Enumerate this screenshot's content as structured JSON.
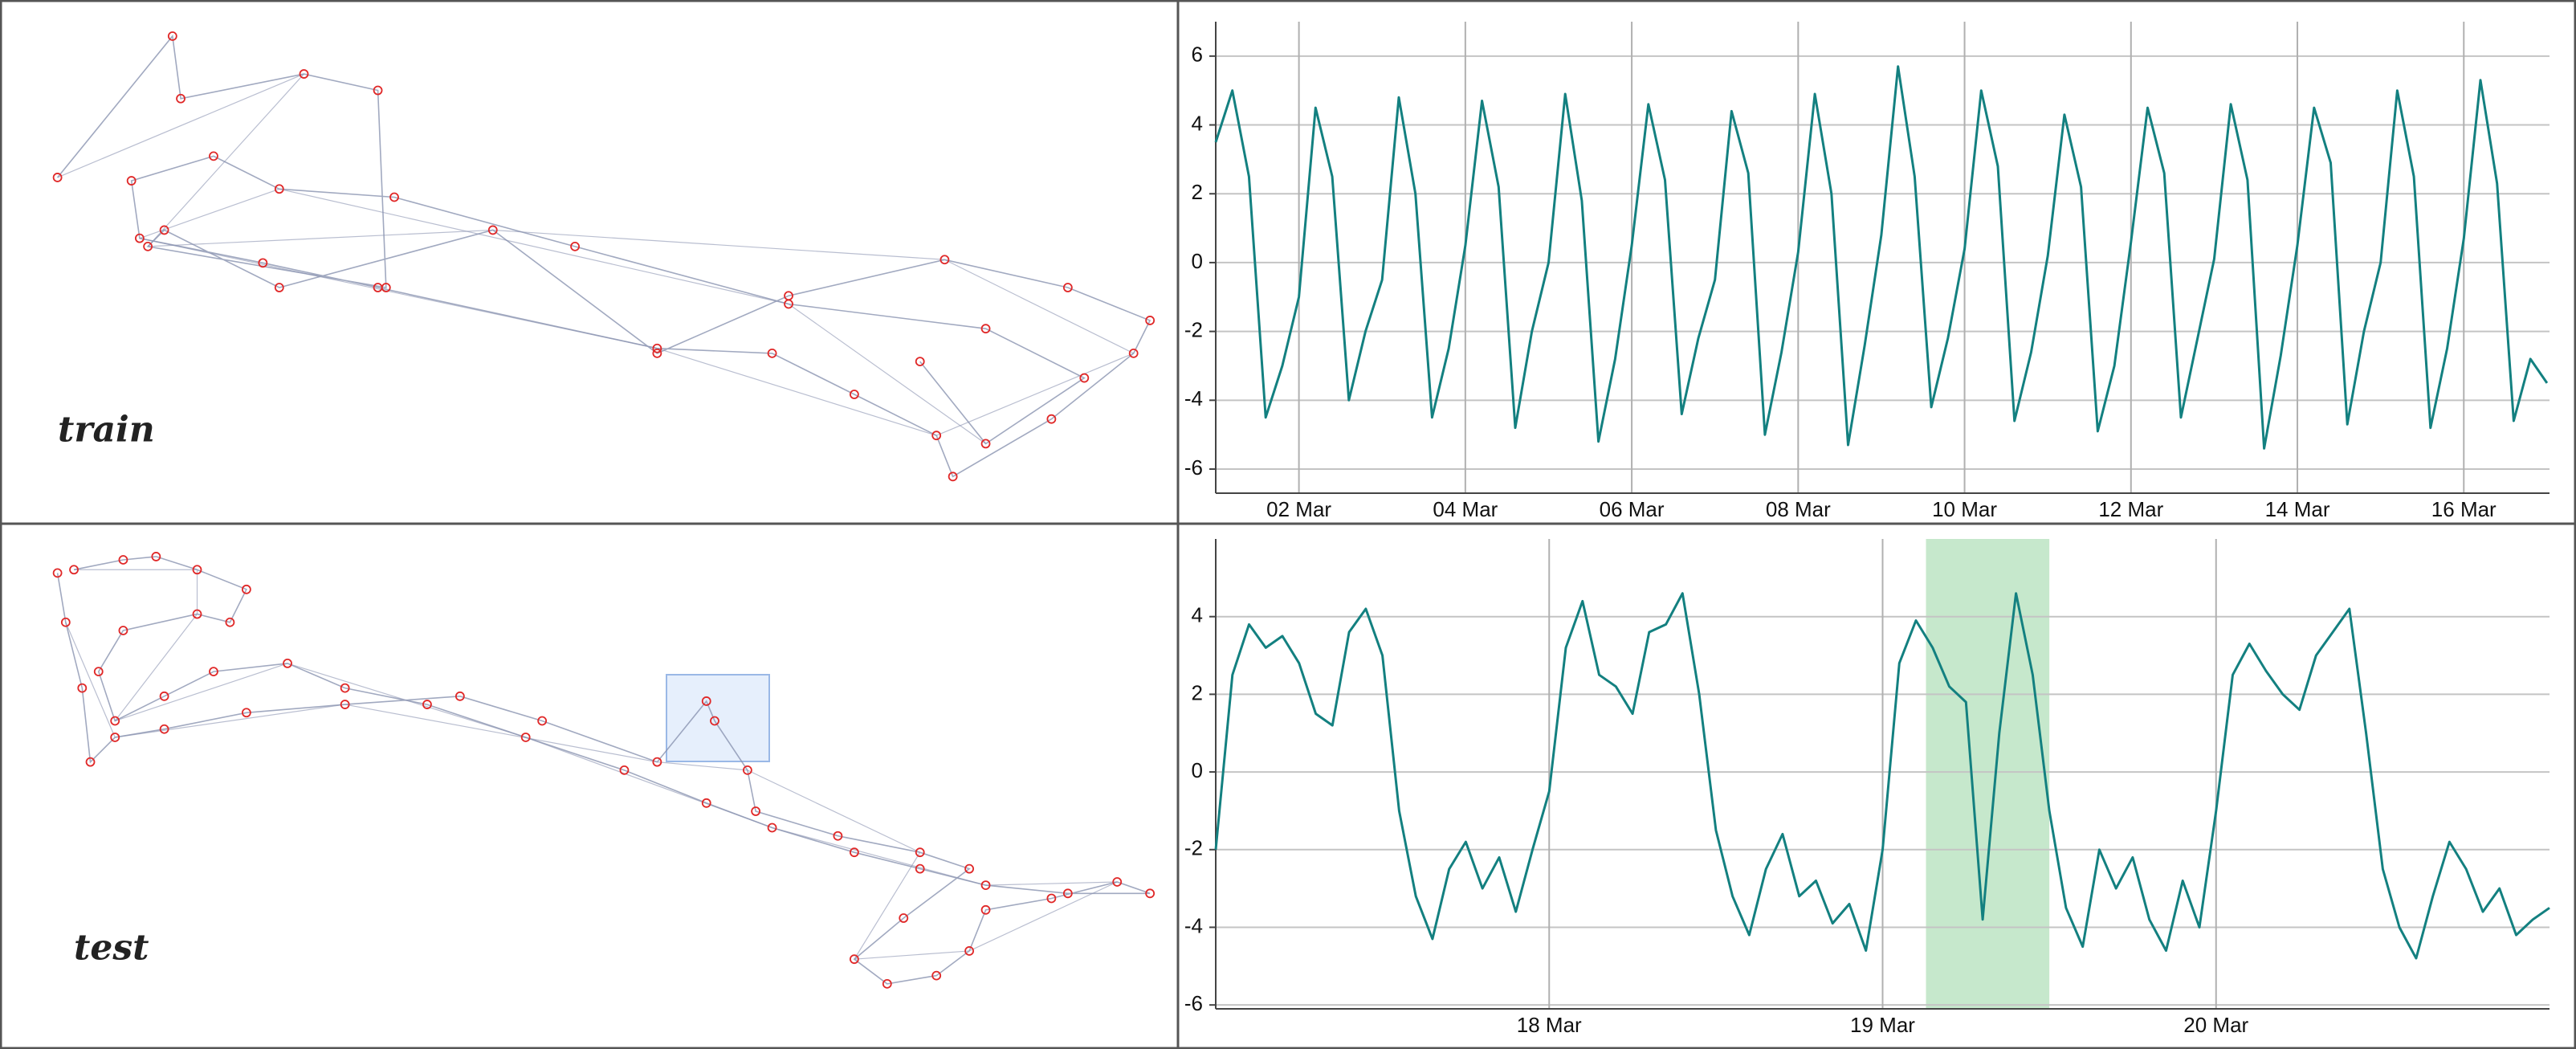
{
  "chart_data": [
    {
      "type": "network",
      "title": "train",
      "color": "#e02828",
      "edge_color": "#8a93b0",
      "x": [
        35,
        105,
        110,
        185,
        230,
        235,
        90,
        100,
        170,
        300,
        400,
        480,
        575,
        650,
        700,
        690,
        640,
        580,
        570,
        520,
        470,
        400,
        230,
        160,
        85,
        80,
        130,
        170,
        240,
        350,
        480,
        600,
        660,
        600,
        560
      ],
      "y": [
        108,
        22,
        60,
        45,
        55,
        175,
        150,
        140,
        175,
        140,
        215,
        180,
        158,
        175,
        195,
        215,
        255,
        290,
        265,
        240,
        215,
        212,
        175,
        160,
        145,
        110,
        95,
        115,
        120,
        150,
        185,
        200,
        230,
        270,
        220
      ]
    },
    {
      "type": "line",
      "color": "#138080",
      "grid": true,
      "x": [
        1.0,
        1.2,
        1.4,
        1.6,
        1.8,
        2.0,
        2.2,
        2.4,
        2.6,
        2.8,
        3.0,
        3.2,
        3.4,
        3.6,
        3.8,
        4.0,
        4.2,
        4.4,
        4.6,
        4.8,
        5.0,
        5.2,
        5.4,
        5.6,
        5.8,
        6.0,
        6.2,
        6.4,
        6.6,
        6.8,
        7.0,
        7.2,
        7.4,
        7.6,
        7.8,
        8.0,
        8.2,
        8.4,
        8.6,
        8.8,
        9.0,
        9.2,
        9.4,
        9.6,
        9.8,
        10.0,
        10.2,
        10.4,
        10.6,
        10.8,
        11.0,
        11.2,
        11.4,
        11.6,
        11.8,
        12.0,
        12.2,
        12.4,
        12.6,
        12.8,
        13.0,
        13.2,
        13.4,
        13.6,
        13.8,
        14.0,
        14.2,
        14.4,
        14.6,
        14.8,
        15.0,
        15.2,
        15.4,
        15.6,
        15.8,
        16.0,
        16.2,
        16.4,
        16.6,
        16.8,
        17.0
      ],
      "values": [
        3.5,
        5.0,
        2.5,
        -4.5,
        -3.0,
        -1.0,
        4.5,
        2.5,
        -4.0,
        -2.0,
        -0.5,
        4.8,
        2.0,
        -4.5,
        -2.5,
        0.5,
        4.7,
        2.2,
        -4.8,
        -2.0,
        0.0,
        4.9,
        1.8,
        -5.2,
        -2.8,
        0.5,
        4.6,
        2.4,
        -4.4,
        -2.2,
        -0.5,
        4.4,
        2.6,
        -5.0,
        -2.6,
        0.3,
        4.9,
        2.0,
        -5.3,
        -2.4,
        0.8,
        5.7,
        2.5,
        -4.2,
        -2.2,
        0.4,
        5.0,
        2.8,
        -4.6,
        -2.6,
        0.2,
        4.3,
        2.2,
        -4.9,
        -3.0,
        0.6,
        4.5,
        2.6,
        -4.5,
        -2.2,
        0.1,
        4.6,
        2.4,
        -5.4,
        -2.7,
        0.5,
        4.5,
        2.9,
        -4.7,
        -2.0,
        0.0,
        5.0,
        2.5,
        -4.8,
        -2.5,
        0.7,
        5.3,
        2.3,
        -4.6,
        -2.8,
        -3.5
      ],
      "xlim": [
        1,
        17.03
      ],
      "ylim": [
        -6.7,
        7
      ],
      "xticks": [
        {
          "value": 2,
          "label": "02 Mar"
        },
        {
          "value": 4,
          "label": "04 Mar"
        },
        {
          "value": 6,
          "label": "06 Mar"
        },
        {
          "value": 8,
          "label": "08 Mar"
        },
        {
          "value": 10,
          "label": "10 Mar"
        },
        {
          "value": 12,
          "label": "12 Mar"
        },
        {
          "value": 14,
          "label": "14 Mar"
        },
        {
          "value": 16,
          "label": "16 Mar"
        }
      ],
      "yticks": [
        -6,
        -4,
        -2,
        0,
        2,
        4,
        6
      ]
    },
    {
      "type": "network",
      "title": "test",
      "color": "#e02828",
      "edge_color": "#8a93b0",
      "x": [
        45,
        75,
        95,
        120,
        150,
        140,
        120,
        75,
        60,
        70,
        100,
        130,
        175,
        210,
        260,
        320,
        380,
        430,
        470,
        520,
        560,
        600,
        650,
        700,
        680,
        640,
        600,
        590,
        570,
        540,
        520,
        550,
        590,
        560,
        510,
        460,
        455,
        435,
        430,
        400,
        330,
        280,
        210,
        150,
        100,
        70,
        55,
        50,
        40,
        35
      ],
      "y": [
        28,
        22,
        20,
        28,
        40,
        60,
        55,
        65,
        90,
        120,
        105,
        90,
        85,
        100,
        110,
        130,
        150,
        170,
        185,
        200,
        210,
        220,
        225,
        225,
        218,
        228,
        235,
        260,
        275,
        280,
        265,
        240,
        210,
        200,
        190,
        175,
        150,
        120,
        108,
        145,
        120,
        105,
        110,
        115,
        125,
        130,
        145,
        100,
        60,
        30
      ]
    },
    {
      "type": "line",
      "color": "#138080",
      "grid": true,
      "highlight_x": [
        19.13,
        19.5
      ],
      "highlight_color": "#c6e8cc",
      "x": [
        17.0,
        17.05,
        17.1,
        17.15,
        17.2,
        17.25,
        17.3,
        17.35,
        17.4,
        17.45,
        17.5,
        17.55,
        17.6,
        17.65,
        17.7,
        17.75,
        17.8,
        17.85,
        17.9,
        17.95,
        18.0,
        18.05,
        18.1,
        18.15,
        18.2,
        18.25,
        18.3,
        18.35,
        18.4,
        18.45,
        18.5,
        18.55,
        18.6,
        18.65,
        18.7,
        18.75,
        18.8,
        18.85,
        18.9,
        18.95,
        19.0,
        19.05,
        19.1,
        19.15,
        19.2,
        19.25,
        19.3,
        19.35,
        19.4,
        19.45,
        19.5,
        19.55,
        19.6,
        19.65,
        19.7,
        19.75,
        19.8,
        19.85,
        19.9,
        19.95,
        20.0,
        20.05,
        20.1,
        20.15,
        20.2,
        20.25,
        20.3,
        20.35,
        20.4,
        20.45,
        20.5,
        20.55,
        20.6,
        20.65,
        20.7,
        20.75,
        20.8,
        20.85,
        20.9,
        20.95,
        21.0
      ],
      "values": [
        -2,
        2.5,
        3.8,
        3.2,
        3.5,
        2.8,
        1.5,
        1.2,
        3.6,
        4.2,
        3.0,
        -1.0,
        -3.2,
        -4.3,
        -2.5,
        -1.8,
        -3.0,
        -2.2,
        -3.6,
        -2.0,
        -0.5,
        3.2,
        4.4,
        2.5,
        2.2,
        1.5,
        3.6,
        3.8,
        4.6,
        2.0,
        -1.5,
        -3.2,
        -4.2,
        -2.5,
        -1.6,
        -3.2,
        -2.8,
        -3.9,
        -3.4,
        -4.6,
        -2.0,
        2.8,
        3.9,
        3.2,
        2.2,
        1.8,
        -3.8,
        1.0,
        4.6,
        2.5,
        -1.0,
        -3.5,
        -4.5,
        -2.0,
        -3.0,
        -2.2,
        -3.8,
        -4.6,
        -2.8,
        -4.0,
        -1.0,
        2.5,
        3.3,
        2.6,
        2.0,
        1.6,
        3.0,
        3.6,
        4.2,
        1.0,
        -2.5,
        -4.0,
        -4.8,
        -3.2,
        -1.8,
        -2.5,
        -3.6,
        -3.0,
        -4.2,
        -3.8,
        -3.5
      ],
      "xlim": [
        17,
        21
      ],
      "ylim": [
        -6.1,
        6
      ],
      "xticks": [
        {
          "value": 18,
          "label": "18 Mar"
        },
        {
          "value": 19,
          "label": "19 Mar"
        },
        {
          "value": 20,
          "label": "20 Mar"
        }
      ],
      "yticks": [
        -6,
        -4,
        -2,
        0,
        2,
        4
      ]
    }
  ]
}
